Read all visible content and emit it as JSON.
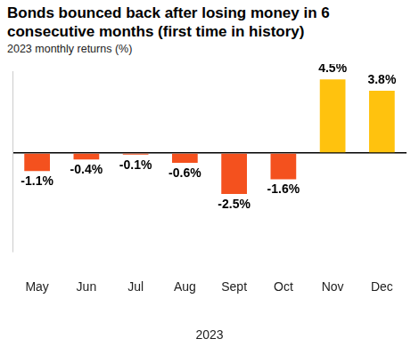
{
  "chart_data": {
    "type": "bar",
    "title": "Bonds bounced back after losing money in 6 consecutive months (first time in history)",
    "subtitle": "2023 monthly returns (%)",
    "x_label": "2023",
    "categories": [
      "May",
      "Jun",
      "Jul",
      "Aug",
      "Sept",
      "Oct",
      "Nov",
      "Dec"
    ],
    "values": [
      -1.1,
      -0.4,
      -0.1,
      -0.6,
      -2.5,
      -1.6,
      4.5,
      3.8
    ],
    "value_labels": [
      "-1.1%",
      "-0.4%",
      "-0.1%",
      "-0.6%",
      "-2.5%",
      "-1.6%",
      "4.5%",
      "3.8%"
    ],
    "colors": [
      "#f4511e",
      "#f4511e",
      "#f4511e",
      "#f4511e",
      "#f4511e",
      "#f4511e",
      "#ffc20e",
      "#ffc20e"
    ],
    "ylim": [
      -6,
      5
    ],
    "yticks": [
      0
    ],
    "grid": true,
    "data_labels": true,
    "tick_labels": "x"
  }
}
